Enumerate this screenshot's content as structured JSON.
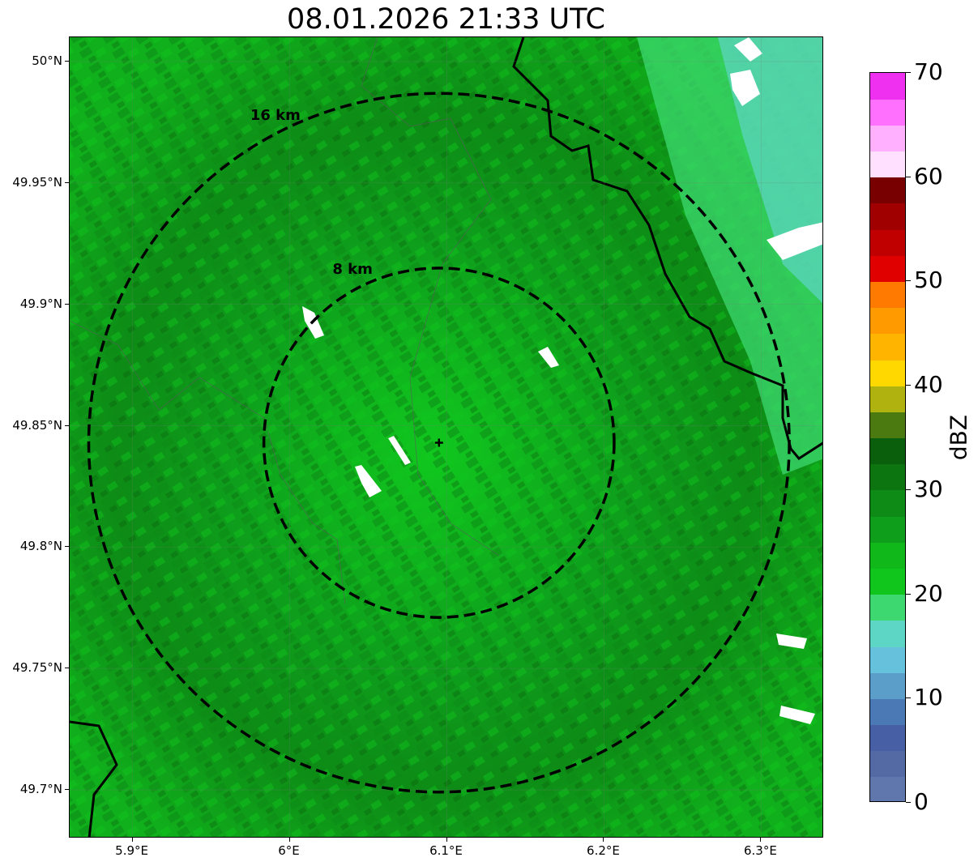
{
  "title": "08.01.2026 21:33 UTC",
  "map": {
    "lon_range": [
      5.86,
      6.34
    ],
    "lat_range": [
      49.68,
      50.01
    ],
    "radar_site": {
      "lon": 6.095,
      "lat": 49.843
    },
    "y_ticks": [
      "50°N",
      "49.95°N",
      "49.9°N",
      "49.85°N",
      "49.8°N",
      "49.75°N",
      "49.7°N"
    ],
    "y_tick_values": [
      50.0,
      49.95,
      49.9,
      49.85,
      49.8,
      49.75,
      49.7
    ],
    "x_ticks": [
      "5.9°E",
      "6°E",
      "6.1°E",
      "6.2°E",
      "6.3°E"
    ],
    "x_tick_values": [
      5.9,
      6.0,
      6.1,
      6.2,
      6.3
    ],
    "range_rings": [
      {
        "label": "8 km",
        "radius_km": 8
      },
      {
        "label": "16 km",
        "radius_km": 16
      }
    ]
  },
  "colorbar": {
    "label": "dBZ",
    "ticks": [
      "0",
      "10",
      "20",
      "30",
      "40",
      "50",
      "60",
      "70"
    ],
    "range": [
      0,
      70
    ],
    "colors": [
      "#6077ad",
      "#546aa5",
      "#4760a5",
      "#4a79b5",
      "#5a9ec9",
      "#66c1dd",
      "#5ed6c6",
      "#3ed870",
      "#10c61c",
      "#10b81a",
      "#0e9e1c",
      "#0d8b16",
      "#0c7510",
      "#0a5f0c",
      "#4a7a10",
      "#b0b210",
      "#ffd800",
      "#ffb400",
      "#ff9a00",
      "#ff7a00",
      "#e00000",
      "#c00000",
      "#a00000",
      "#780000",
      "#ffe0ff",
      "#ffb0ff",
      "#ff70ff",
      "#f030f0"
    ]
  }
}
